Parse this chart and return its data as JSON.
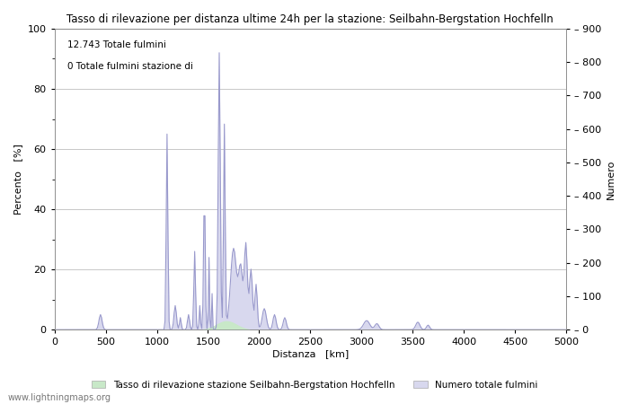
{
  "title": "Tasso di rilevazione per distanza ultime 24h per la stazione: Seilbahn-Bergstation Hochfelln",
  "xlabel": "Distanza   [km]",
  "ylabel_left": "Percento   [%]",
  "ylabel_right": "Numero",
  "annotation_line1": "12.743 Totale fulmini",
  "annotation_line2": "0 Totale fulmini stazione di",
  "legend_green": "Tasso di rilevazione stazione Seilbahn-Bergstation Hochfelln",
  "legend_blue": "Numero totale fulmini",
  "watermark": "www.lightningmaps.org",
  "xlim": [
    0,
    5000
  ],
  "ylim_left": [
    0,
    100
  ],
  "ylim_right": [
    0,
    900
  ],
  "yticks_left": [
    0,
    20,
    40,
    60,
    80,
    100
  ],
  "yticks_right": [
    0,
    100,
    200,
    300,
    400,
    500,
    600,
    700,
    800,
    900
  ],
  "xticks": [
    0,
    500,
    1000,
    1500,
    2000,
    2500,
    3000,
    3500,
    4000,
    4500,
    5000
  ],
  "bg_color": "#ffffff",
  "grid_color": "#c8c8c8",
  "line_color": "#9999cc",
  "fill_blue_color": "#d8d8ee",
  "fill_green_color": "#c8e8c8",
  "line_width": 0.8
}
